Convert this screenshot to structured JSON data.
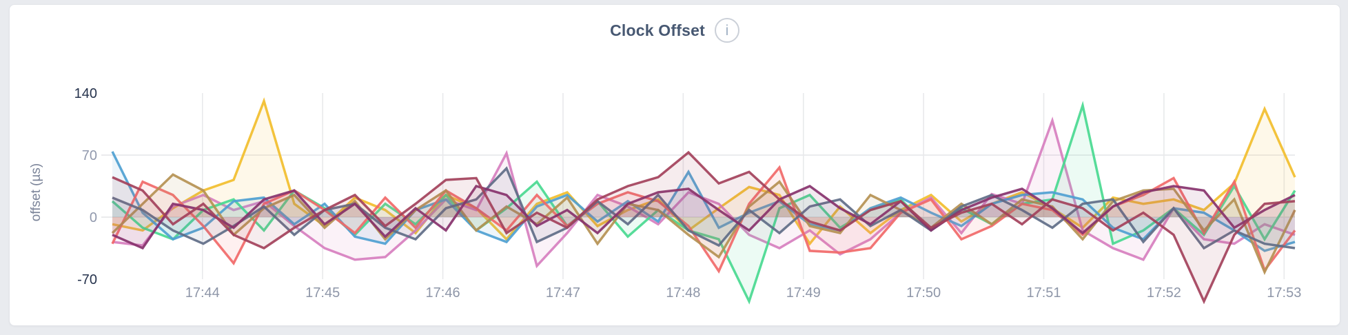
{
  "header": {
    "title": "Clock Offset",
    "info_icon": "i"
  },
  "chart_data": {
    "type": "line",
    "title": "Clock Offset",
    "xlabel": "",
    "ylabel": "offset (µs)",
    "ylim": [
      -70,
      140
    ],
    "grid": true,
    "legend": false,
    "fill_to_zero": true,
    "fill_opacity": 0.1,
    "stroke_width": 3.5,
    "x_start_minute": 43.25,
    "x_end_minute": 53.09,
    "y_ticks": [
      {
        "label": "140",
        "value": 140,
        "emphasis": true,
        "gridline": false
      },
      {
        "label": "70",
        "value": 70,
        "emphasis": false,
        "gridline": true
      },
      {
        "label": "0",
        "value": 0,
        "emphasis": false,
        "gridline": true
      },
      {
        "label": "-70",
        "value": -70,
        "emphasis": true,
        "gridline": false
      }
    ],
    "x_ticks": [
      {
        "label": "17:44",
        "minute": 44
      },
      {
        "label": "17:45",
        "minute": 45
      },
      {
        "label": "17:46",
        "minute": 46
      },
      {
        "label": "17:47",
        "minute": 47
      },
      {
        "label": "17:48",
        "minute": 48
      },
      {
        "label": "17:49",
        "minute": 49
      },
      {
        "label": "17:50",
        "minute": 50
      },
      {
        "label": "17:51",
        "minute": 51
      },
      {
        "label": "17:52",
        "minute": 52
      },
      {
        "label": "17:53",
        "minute": 53
      }
    ],
    "series": [
      {
        "id": "series-gold",
        "color": "#F2BE2C",
        "values": [
          -8,
          -15,
          10,
          30,
          42,
          131,
          15,
          -10,
          22,
          8,
          -18,
          25,
          10,
          -25,
          15,
          28,
          -10,
          8,
          20,
          -15,
          10,
          34,
          25,
          -30,
          12,
          -18,
          8,
          25,
          -5,
          15,
          28,
          10,
          -12,
          22,
          15,
          20,
          8,
          38,
          122,
          45
        ]
      },
      {
        "id": "series-orchid",
        "color": "#D77FBF",
        "values": [
          -28,
          -32,
          12,
          25,
          8,
          18,
          -10,
          -35,
          -48,
          -45,
          -15,
          20,
          8,
          72,
          -55,
          -18,
          25,
          12,
          -8,
          28,
          15,
          -20,
          -35,
          -15,
          -42,
          -25,
          5,
          22,
          -18,
          26,
          15,
          109,
          -15,
          -35,
          -48,
          10,
          -25,
          -30,
          -8,
          -20
        ]
      },
      {
        "id": "series-green",
        "color": "#49D990",
        "values": [
          18,
          -12,
          -25,
          8,
          20,
          -15,
          30,
          10,
          -20,
          15,
          -8,
          25,
          -15,
          10,
          40,
          -10,
          18,
          -22,
          8,
          -15,
          -25,
          -95,
          10,
          25,
          -12,
          8,
          20,
          -15,
          10,
          -8,
          15,
          20,
          126,
          -30,
          -15,
          10,
          -20,
          35,
          -25,
          30
        ]
      },
      {
        "id": "series-blue",
        "color": "#4E9FD1",
        "values": [
          74,
          5,
          -25,
          -12,
          18,
          22,
          -8,
          15,
          -22,
          -30,
          8,
          20,
          -15,
          -28,
          12,
          25,
          -5,
          18,
          -5,
          51,
          -12,
          5,
          18,
          -8,
          -15,
          10,
          22,
          5,
          -10,
          15,
          25,
          28,
          20,
          -12,
          -25,
          10,
          5,
          -15,
          -38,
          -28
        ]
      },
      {
        "id": "series-salmon",
        "color": "#F16969",
        "values": [
          -30,
          40,
          25,
          -10,
          -52,
          15,
          30,
          8,
          -18,
          22,
          -12,
          30,
          10,
          -15,
          25,
          -10,
          15,
          28,
          18,
          -10,
          -61,
          15,
          56,
          -38,
          -40,
          -35,
          5,
          20,
          -25,
          -10,
          15,
          8,
          -20,
          12,
          25,
          44,
          -18,
          40,
          -60,
          -15
        ]
      },
      {
        "id": "series-tan",
        "color": "#B59153",
        "values": [
          -18,
          15,
          48,
          30,
          -20,
          10,
          25,
          -12,
          18,
          -25,
          8,
          30,
          -15,
          12,
          -8,
          22,
          -30,
          15,
          8,
          -20,
          -45,
          12,
          40,
          -10,
          -18,
          25,
          8,
          -12,
          15,
          -8,
          20,
          12,
          -25,
          18,
          30,
          32,
          -15,
          20,
          -62,
          8
        ]
      },
      {
        "id": "series-slate",
        "color": "#5F6C87",
        "values": [
          22,
          8,
          -15,
          -30,
          -10,
          12,
          -20,
          8,
          15,
          -12,
          -25,
          10,
          20,
          55,
          -28,
          -12,
          18,
          -8,
          25,
          -15,
          -32,
          8,
          -18,
          12,
          20,
          -10,
          8,
          -15,
          12,
          25,
          8,
          -12,
          15,
          20,
          -28,
          10,
          -35,
          -15,
          -30,
          -35
        ]
      },
      {
        "id": "series-purple",
        "color": "#87326D",
        "values": [
          -20,
          -35,
          15,
          8,
          -12,
          20,
          30,
          -8,
          15,
          -22,
          10,
          -15,
          35,
          25,
          -10,
          8,
          -18,
          15,
          28,
          32,
          8,
          -15,
          20,
          35,
          10,
          -8,
          18,
          -15,
          8,
          22,
          32,
          10,
          -18,
          12,
          28,
          35,
          30,
          -12,
          8,
          25
        ]
      },
      {
        "id": "series-maroon",
        "color": "#A3415B",
        "values": [
          45,
          30,
          -8,
          15,
          -20,
          -35,
          -12,
          8,
          25,
          -10,
          15,
          42,
          44,
          -18,
          5,
          -12,
          20,
          35,
          45,
          73,
          38,
          51,
          20,
          -5,
          -15,
          8,
          18,
          -12,
          5,
          15,
          -8,
          20,
          10,
          -15,
          5,
          -20,
          -95,
          -20,
          15,
          18
        ]
      }
    ],
    "colors": {
      "tick_default": "#9199ad",
      "tick_emphasis": "#26334d",
      "x_tick": "#8e96a8",
      "axis_title": "#7b8499",
      "grid": "#e8e9eb",
      "title": "#475872"
    }
  }
}
